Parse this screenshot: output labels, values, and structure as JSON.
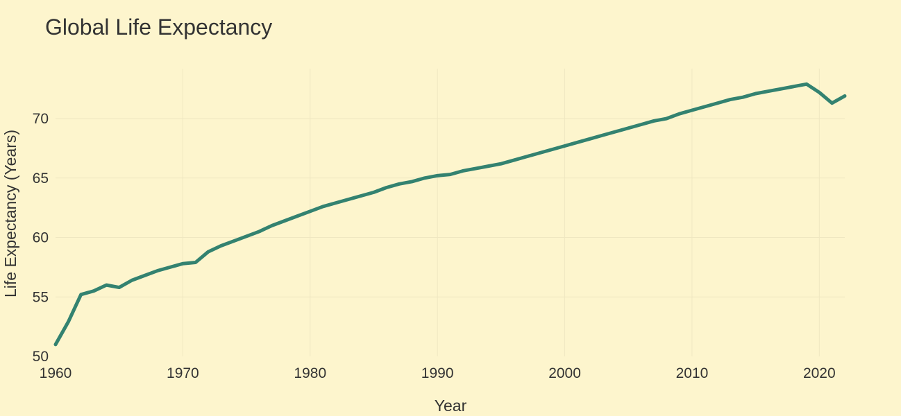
{
  "chart_data": {
    "type": "line",
    "title": "Global Life Expectancy",
    "xlabel": "Year",
    "ylabel": "Life Expectancy (Years)",
    "xlim": [
      1960,
      2022
    ],
    "ylim": [
      50,
      74.2
    ],
    "x_ticks": [
      1960,
      1970,
      1980,
      1990,
      2000,
      2010,
      2020
    ],
    "y_ticks": [
      50,
      55,
      60,
      65,
      70
    ],
    "grid": true,
    "legend": "none",
    "colors": {
      "background": "#fdf5cd",
      "grid": "#efe7c1",
      "text": "#333333",
      "line": "#338270"
    },
    "series": [
      {
        "x": [
          1960,
          1961,
          1962,
          1963,
          1964,
          1965,
          1966,
          1967,
          1968,
          1969,
          1970,
          1971,
          1972,
          1973,
          1974,
          1975,
          1976,
          1977,
          1978,
          1979,
          1980,
          1981,
          1982,
          1983,
          1984,
          1985,
          1986,
          1987,
          1988,
          1989,
          1990,
          1991,
          1992,
          1993,
          1994,
          1995,
          1996,
          1997,
          1998,
          1999,
          2000,
          2001,
          2002,
          2003,
          2004,
          2005,
          2006,
          2007,
          2008,
          2009,
          2010,
          2011,
          2012,
          2013,
          2014,
          2015,
          2016,
          2017,
          2018,
          2019,
          2020,
          2021,
          2022
        ],
        "values": [
          51.0,
          52.9,
          55.2,
          55.5,
          56.0,
          55.8,
          56.4,
          56.8,
          57.2,
          57.5,
          57.8,
          57.9,
          58.8,
          59.3,
          59.7,
          60.1,
          60.5,
          61.0,
          61.4,
          61.8,
          62.2,
          62.6,
          62.9,
          63.2,
          63.5,
          63.8,
          64.2,
          64.5,
          64.7,
          65.0,
          65.2,
          65.3,
          65.6,
          65.8,
          66.0,
          66.2,
          66.5,
          66.8,
          67.1,
          67.4,
          67.7,
          68.0,
          68.3,
          68.6,
          68.9,
          69.2,
          69.5,
          69.8,
          70.0,
          70.4,
          70.7,
          71.0,
          71.3,
          71.6,
          71.8,
          72.1,
          72.3,
          72.5,
          72.7,
          72.9,
          72.2,
          71.3,
          71.9
        ]
      }
    ]
  }
}
